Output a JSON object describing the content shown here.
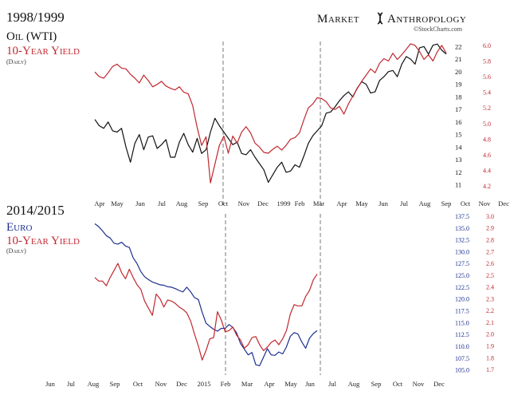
{
  "branding": {
    "name_left": "Market",
    "name_right": "Anthropology",
    "credit": "©StockCharts.com",
    "logo_icon": "dna-helix-icon"
  },
  "colors": {
    "red": "#c0282f",
    "black": "#111111",
    "blue": "#1c2f8f",
    "divider": "#7a7a7a",
    "background": "#ffffff"
  },
  "chart_data": [
    {
      "type": "line",
      "title": "1998/1999",
      "legend": [
        "Oil (WTI)",
        "10-Year Yield",
        "(Daily)"
      ],
      "x_tick_labels": [
        "Apr",
        "May",
        "Jun",
        "Jul",
        "Aug",
        "Sep",
        "Oct",
        "Nov",
        "Dec",
        "1999",
        "Feb",
        "Mar",
        "Apr",
        "May",
        "Jun",
        "Jul",
        "Aug",
        "Sep",
        "Oct",
        "Nov",
        "Dec"
      ],
      "events": [
        "Oct",
        "Mar"
      ],
      "y_axes": [
        {
          "side": "right-inner",
          "series": "Oil (WTI)",
          "ticks": [
            11,
            12,
            13,
            14,
            15,
            16,
            17,
            18,
            19,
            20,
            21,
            22
          ],
          "ylim": [
            10.6,
            22.4
          ]
        },
        {
          "side": "right-outer",
          "series": "10-Year Yield",
          "ticks": [
            4.2,
            4.4,
            4.6,
            4.8,
            5.0,
            5.2,
            5.4,
            5.6,
            5.8,
            6.0
          ],
          "ylim": [
            4.15,
            6.05
          ]
        }
      ],
      "series": [
        {
          "name": "Oil (WTI)",
          "color": "#111111",
          "axis": "right-inner",
          "values": [
            16.2,
            15.7,
            15.5,
            16.0,
            15.3,
            15.2,
            15.5,
            14.0,
            12.8,
            14.3,
            15.0,
            13.8,
            14.8,
            14.9,
            13.9,
            14.2,
            14.6,
            13.2,
            13.2,
            14.4,
            15.1,
            14.2,
            13.6,
            14.7,
            13.5,
            13.8,
            15.2,
            16.3,
            15.7,
            15.2,
            14.7,
            14.2,
            14.4,
            13.5,
            13.4,
            13.8,
            13.2,
            12.7,
            12.2,
            11.2,
            11.8,
            12.4,
            12.8,
            12.0,
            12.1,
            12.6,
            12.4,
            13.3,
            14.3,
            14.9,
            15.3,
            15.7,
            16.7,
            16.8,
            17.2,
            17.7,
            18.1,
            18.4,
            18.0,
            18.7,
            19.2,
            19.0,
            18.3,
            18.4,
            19.3,
            19.6,
            20.0,
            20.1,
            19.6,
            20.6,
            21.2,
            21.0,
            20.6,
            21.9,
            22.0,
            21.4,
            22.1,
            22.2,
            21.7,
            21.4
          ]
        },
        {
          "name": "10-Year Yield",
          "color": "#c0282f",
          "axis": "right-outer",
          "values": [
            5.66,
            5.6,
            5.58,
            5.65,
            5.73,
            5.76,
            5.71,
            5.7,
            5.63,
            5.58,
            5.52,
            5.62,
            5.55,
            5.47,
            5.5,
            5.54,
            5.48,
            5.45,
            5.43,
            5.47,
            5.4,
            5.38,
            5.23,
            4.95,
            4.72,
            4.83,
            4.24,
            4.48,
            4.72,
            4.84,
            4.62,
            4.84,
            4.75,
            4.89,
            4.96,
            4.88,
            4.75,
            4.7,
            4.63,
            4.62,
            4.67,
            4.71,
            4.66,
            4.72,
            4.8,
            4.82,
            4.88,
            5.05,
            5.2,
            5.25,
            5.33,
            5.32,
            5.28,
            5.2,
            5.18,
            5.22,
            5.12,
            5.25,
            5.35,
            5.45,
            5.54,
            5.62,
            5.7,
            5.65,
            5.77,
            5.83,
            5.8,
            5.9,
            5.82,
            5.88,
            5.95,
            6.02,
            6.0,
            5.92,
            5.82,
            5.88,
            5.8,
            5.92,
            6.0,
            5.9
          ]
        }
      ]
    },
    {
      "type": "line",
      "title": "2014/2015",
      "legend": [
        "Euro",
        "10-Year Yield",
        "(Daily)"
      ],
      "x_tick_labels": [
        "Jun",
        "Jul",
        "Aug",
        "Sep",
        "Oct",
        "Nov",
        "Dec",
        "2015",
        "Feb",
        "Mar",
        "Apr",
        "May",
        "Jun",
        "Jul",
        "Aug",
        "Sep",
        "Oct",
        "Nov",
        "Dec"
      ],
      "events": [
        "Feb",
        "Jun"
      ],
      "y_axes": [
        {
          "side": "right-inner",
          "series": "Euro",
          "ticks": [
            105.0,
            107.5,
            110.0,
            112.5,
            115.0,
            117.5,
            120.0,
            122.5,
            125.0,
            127.5,
            130.0,
            132.5,
            135.0,
            137.5
          ],
          "ylim": [
            104.6,
            138.0
          ]
        },
        {
          "side": "right-outer",
          "series": "10-Year Yield",
          "ticks": [
            1.7,
            1.8,
            1.9,
            2.0,
            2.1,
            2.2,
            2.3,
            2.4,
            2.5,
            2.6,
            2.7,
            2.8,
            2.9,
            3.0
          ],
          "ylim": [
            1.68,
            3.02
          ]
        }
      ],
      "series": [
        {
          "name": "Euro",
          "color": "#1c2f8f",
          "axis": "right-inner",
          "values": [
            135.9,
            135.3,
            134.4,
            133.4,
            132.9,
            131.8,
            131.6,
            132.0,
            131.2,
            130.9,
            128.7,
            127.5,
            125.8,
            124.7,
            124.1,
            123.6,
            123.3,
            123.0,
            122.9,
            122.6,
            122.5,
            122.2,
            121.8,
            121.5,
            122.5,
            121.5,
            120.3,
            119.9,
            117.2,
            114.9,
            114.2,
            113.6,
            113.2,
            113.8,
            113.8,
            114.6,
            114.0,
            112.8,
            110.6,
            109.4,
            108.2,
            108.7,
            106.1,
            105.9,
            107.7,
            109.5,
            108.2,
            108.1,
            108.8,
            108.4,
            109.9,
            112.1,
            112.9,
            112.6,
            110.9,
            109.6,
            111.7,
            112.7,
            113.3
          ]
        },
        {
          "name": "10-Year Yield",
          "color": "#c0282f",
          "axis": "right-outer",
          "values": [
            2.48,
            2.45,
            2.45,
            2.41,
            2.48,
            2.54,
            2.6,
            2.52,
            2.47,
            2.55,
            2.48,
            2.42,
            2.38,
            2.28,
            2.22,
            2.16,
            2.34,
            2.3,
            2.23,
            2.29,
            2.28,
            2.26,
            2.23,
            2.21,
            2.18,
            2.11,
            2.0,
            1.9,
            1.78,
            1.86,
            1.96,
            1.97,
            2.19,
            2.12,
            2.02,
            2.03,
            2.06,
            1.99,
            1.95,
            1.88,
            1.91,
            1.97,
            1.98,
            1.91,
            1.86,
            1.89,
            1.93,
            1.95,
            1.91,
            1.96,
            2.03,
            2.17,
            2.25,
            2.24,
            2.24,
            2.32,
            2.37,
            2.46,
            2.51
          ]
        }
      ]
    }
  ]
}
